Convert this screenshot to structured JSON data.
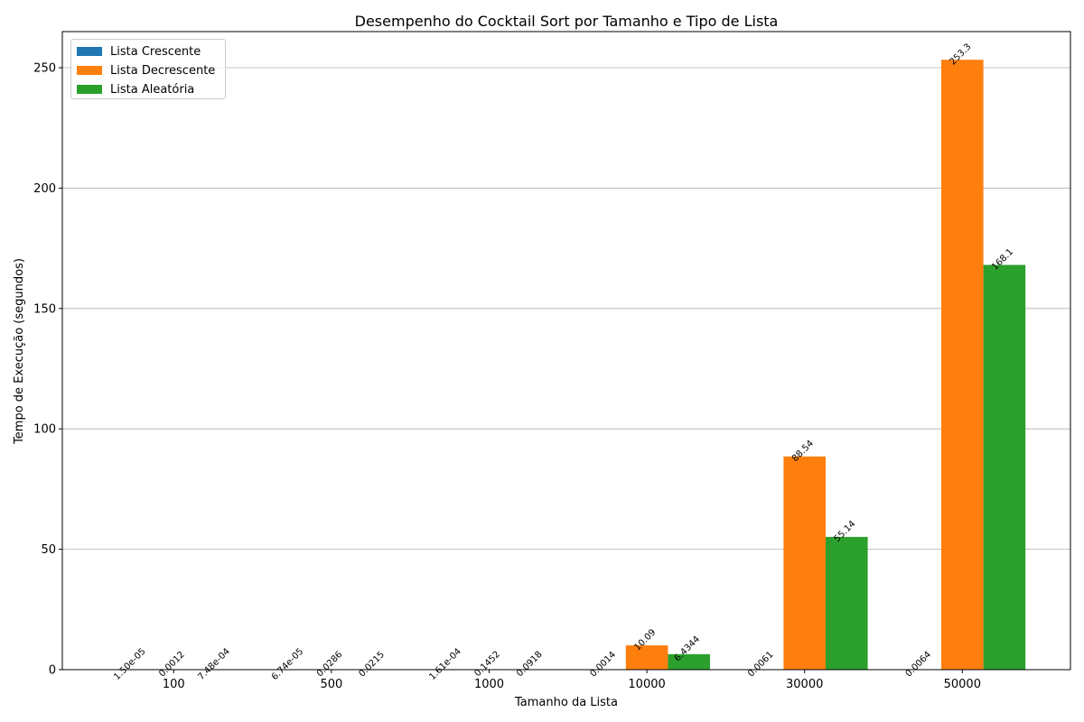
{
  "chart_data": {
    "type": "bar",
    "title": "Desempenho do Cocktail Sort por Tamanho e Tipo de Lista",
    "xlabel": "Tamanho da Lista",
    "ylabel": "Tempo de Execução (segundos)",
    "categories": [
      "100",
      "500",
      "1000",
      "10000",
      "30000",
      "50000"
    ],
    "ylim": [
      0,
      265
    ],
    "yticks": [
      "0",
      "50",
      "100",
      "150",
      "200",
      "250"
    ],
    "grid": "y",
    "legend_position": "top-left",
    "series": [
      {
        "name": "Lista Crescente",
        "color": "#1f77b4",
        "values": [
          1.5e-05,
          6.74e-05,
          0.000161,
          0.0014,
          0.0061,
          0.0064
        ],
        "labels": [
          "1.50e-05",
          "6.74e-05",
          "1.61e-04",
          "0.0014",
          "0.0061",
          "0.0064"
        ]
      },
      {
        "name": "Lista Decrescente",
        "color": "#ff7f0e",
        "values": [
          0.0012,
          0.0286,
          0.1452,
          10.09,
          88.54,
          253.3
        ],
        "labels": [
          "0.0012",
          "0.0286",
          "0.1452",
          "10.09",
          "88.54",
          "253.3"
        ]
      },
      {
        "name": "Lista Aleatória",
        "color": "#2ca02c",
        "values": [
          0.000748,
          0.0215,
          0.0918,
          6.4344,
          55.14,
          168.1
        ],
        "labels": [
          "7.48e-04",
          "0.0215",
          "0.0918",
          "6.4344",
          "55.14",
          "168.1"
        ]
      }
    ]
  }
}
